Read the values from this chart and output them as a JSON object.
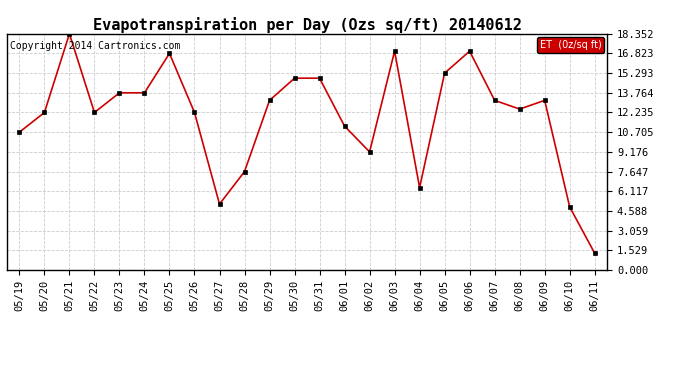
{
  "title": "Evapotranspiration per Day (Ozs sq/ft) 20140612",
  "copyright_text": "Copyright 2014 Cartronics.com",
  "legend_label": "ET  (0z/sq ft)",
  "x_labels": [
    "05/19",
    "05/20",
    "05/21",
    "05/22",
    "05/23",
    "05/24",
    "05/25",
    "05/26",
    "05/27",
    "05/28",
    "05/29",
    "05/30",
    "05/31",
    "06/01",
    "06/02",
    "06/03",
    "06/04",
    "06/05",
    "06/06",
    "06/07",
    "06/08",
    "06/09",
    "06/10",
    "06/11"
  ],
  "y_values": [
    10.705,
    12.235,
    18.352,
    12.235,
    13.764,
    13.764,
    16.823,
    12.235,
    5.117,
    7.647,
    13.176,
    14.9,
    14.9,
    11.176,
    9.176,
    17.0,
    6.4,
    15.293,
    17.0,
    13.176,
    12.5,
    13.176,
    4.9,
    1.3
  ],
  "yticks": [
    0.0,
    1.529,
    3.059,
    4.588,
    6.117,
    7.647,
    9.176,
    10.705,
    12.235,
    13.764,
    15.293,
    16.823,
    18.352
  ],
  "line_color": "#cc0000",
  "marker_color": "#000000",
  "grid_color": "#cccccc",
  "bg_color": "#ffffff",
  "legend_bg": "#cc0000",
  "legend_text_color": "#ffffff",
  "title_fontsize": 11,
  "tick_fontsize": 7.5,
  "copyright_fontsize": 7,
  "ylim_max": 18.352
}
